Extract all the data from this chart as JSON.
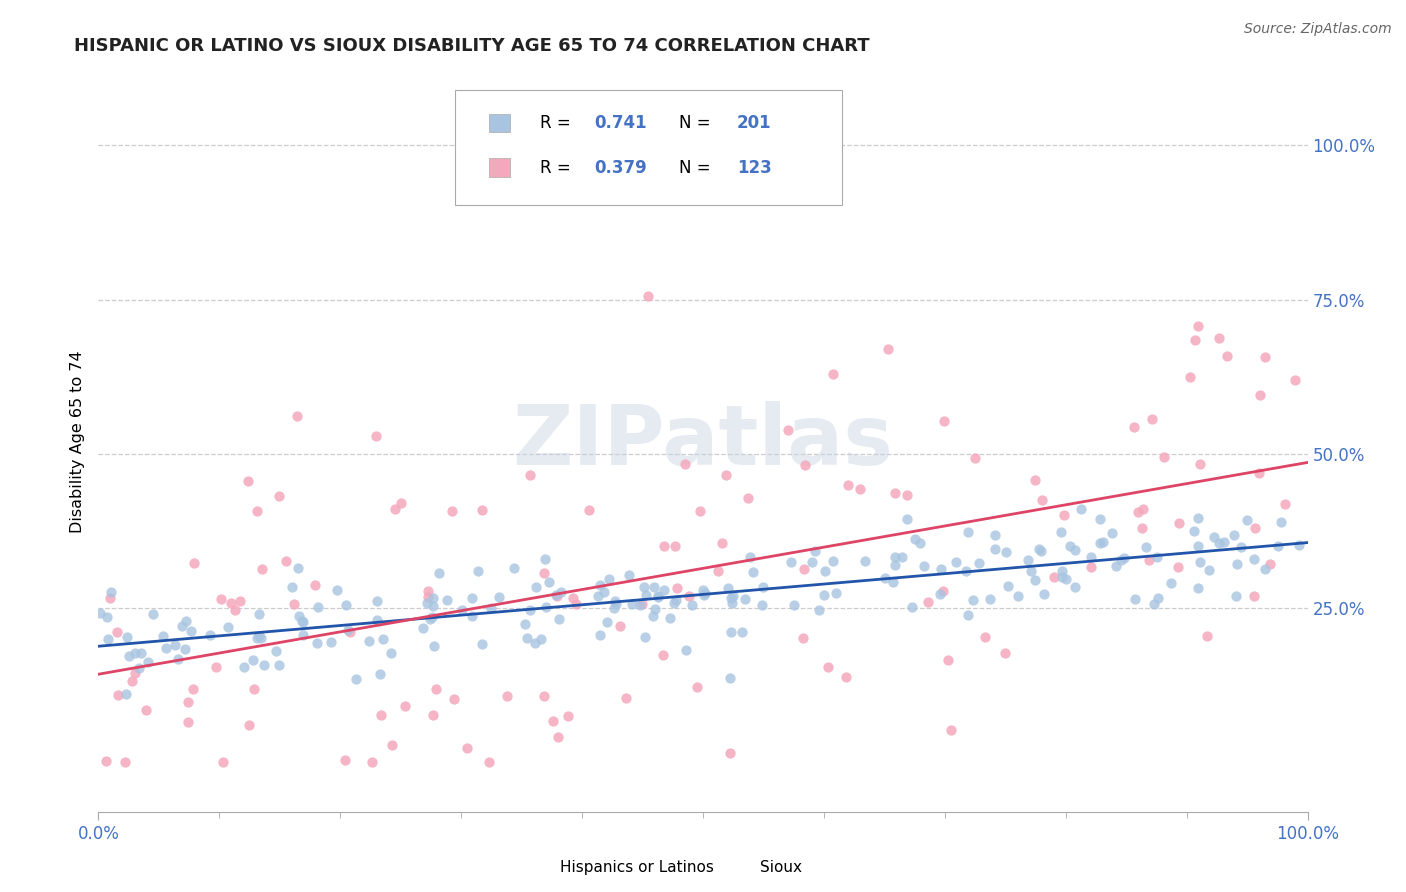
{
  "title": "HISPANIC OR LATINO VS SIOUX DISABILITY AGE 65 TO 74 CORRELATION CHART",
  "source_text": "Source: ZipAtlas.com",
  "ylabel": "Disability Age 65 to 74",
  "xlim": [
    0.0,
    1.0
  ],
  "ylim": [
    -0.08,
    1.12
  ],
  "blue_R": 0.741,
  "blue_N": 201,
  "pink_R": 0.379,
  "pink_N": 123,
  "blue_color": "#a8c4e0",
  "pink_color": "#f4a8bc",
  "blue_line_color": "#2255aa",
  "pink_line_color": "#dd4466",
  "legend_labels": [
    "Hispanics or Latinos",
    "Sioux"
  ],
  "x_tick_labels": [
    "0.0%",
    "100.0%"
  ],
  "y_tick_labels": [
    "25.0%",
    "50.0%",
    "75.0%",
    "100.0%"
  ],
  "y_tick_positions": [
    0.25,
    0.5,
    0.75,
    1.0
  ],
  "background_color": "#ffffff",
  "grid_color": "#cccccc",
  "blue_intercept": 0.195,
  "blue_slope": 0.16,
  "pink_intercept": 0.18,
  "pink_slope": 0.3
}
